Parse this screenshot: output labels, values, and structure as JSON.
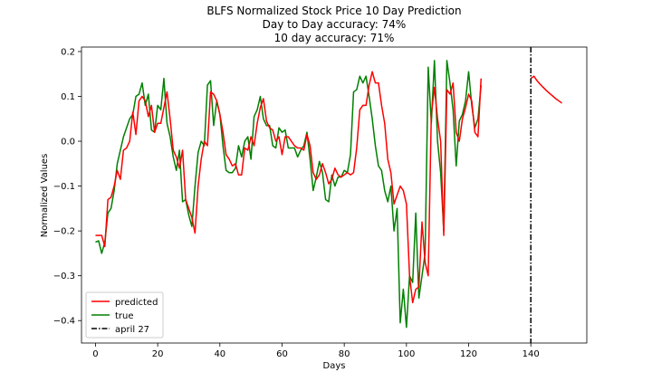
{
  "chart_data": {
    "type": "line",
    "title_lines": [
      "BLFS Normalized Stock Price 10 Day Prediction",
      "Day to Day accuracy: 74%",
      "10 day accuracy: 71%"
    ],
    "xlabel": "Days",
    "ylabel": "Normalized Values",
    "xlim": [
      -4.5,
      158
    ],
    "ylim": [
      -0.45,
      0.21
    ],
    "xticks": [
      0,
      20,
      40,
      60,
      80,
      100,
      120,
      140
    ],
    "yticks": [
      -0.4,
      -0.3,
      -0.2,
      -0.1,
      0.0,
      0.1,
      0.2
    ],
    "ytick_labels": [
      "−0.4",
      "−0.3",
      "−0.2",
      "−0.1",
      "0.0",
      "0.1",
      "0.2"
    ],
    "grid": false,
    "legend_position": "lower-left",
    "series": [
      {
        "name": "predicted",
        "color": "#ff0000",
        "x_start": 0,
        "values": [
          -0.21,
          -0.21,
          -0.21,
          -0.235,
          -0.13,
          -0.125,
          -0.1,
          -0.065,
          -0.085,
          -0.02,
          -0.015,
          0.0,
          0.065,
          0.015,
          0.09,
          0.1,
          0.09,
          0.055,
          0.08,
          0.02,
          0.04,
          0.04,
          0.075,
          0.11,
          0.05,
          -0.02,
          -0.035,
          -0.06,
          -0.02,
          -0.13,
          -0.15,
          -0.17,
          -0.205,
          -0.1,
          -0.04,
          0.0,
          -0.01,
          0.11,
          0.105,
          0.09,
          0.06,
          0.02,
          -0.03,
          -0.04,
          -0.055,
          -0.05,
          -0.075,
          -0.075,
          -0.015,
          -0.02,
          0.01,
          -0.01,
          0.04,
          0.075,
          0.095,
          0.045,
          0.03,
          0.025,
          0.0,
          0.01,
          -0.03,
          0.01,
          0.01,
          0.0,
          -0.01,
          -0.015,
          -0.015,
          -0.02,
          0.015,
          -0.01,
          -0.07,
          -0.085,
          -0.075,
          -0.05,
          -0.07,
          -0.095,
          -0.085,
          -0.06,
          -0.075,
          -0.08,
          -0.075,
          -0.07,
          -0.075,
          -0.07,
          -0.015,
          0.07,
          0.08,
          0.08,
          0.125,
          0.155,
          0.13,
          0.13,
          0.08,
          0.04,
          -0.04,
          -0.07,
          -0.14,
          -0.12,
          -0.1,
          -0.11,
          -0.14,
          -0.3,
          -0.36,
          -0.33,
          -0.325,
          -0.18,
          -0.27,
          -0.3,
          0.06,
          0.12,
          0.05,
          0.0,
          -0.21,
          0.115,
          0.105,
          0.13,
          0.02,
          0.0,
          0.05,
          0.075,
          0.105,
          0.09,
          0.02,
          0.01,
          0.14
        ],
        "forecast": {
          "x": [
            140,
            141,
            142,
            143,
            144,
            145,
            146,
            147,
            148,
            149,
            150
          ],
          "values": [
            0.14,
            0.145,
            0.135,
            0.127,
            0.12,
            0.113,
            0.107,
            0.101,
            0.095,
            0.09,
            0.085
          ]
        }
      },
      {
        "name": "true",
        "color": "#008000",
        "x_start": 0,
        "values": [
          -0.225,
          -0.222,
          -0.25,
          -0.225,
          -0.16,
          -0.15,
          -0.11,
          -0.05,
          -0.02,
          0.01,
          0.03,
          0.05,
          0.06,
          0.1,
          0.105,
          0.13,
          0.08,
          0.105,
          0.025,
          0.02,
          0.08,
          0.07,
          0.14,
          0.04,
          0.01,
          -0.035,
          -0.065,
          -0.02,
          -0.135,
          -0.13,
          -0.165,
          -0.19,
          -0.1,
          -0.025,
          0.0,
          -0.01,
          0.125,
          0.135,
          0.035,
          0.09,
          0.06,
          -0.01,
          -0.065,
          -0.07,
          -0.07,
          -0.06,
          -0.01,
          -0.035,
          0.0,
          0.01,
          -0.04,
          0.055,
          0.07,
          0.1,
          0.05,
          0.035,
          0.035,
          -0.01,
          -0.015,
          0.03,
          0.02,
          0.025,
          -0.015,
          -0.015,
          -0.015,
          -0.035,
          -0.02,
          -0.01,
          0.02,
          -0.04,
          -0.11,
          -0.08,
          -0.045,
          -0.07,
          -0.13,
          -0.135,
          -0.075,
          -0.1,
          -0.08,
          -0.08,
          -0.065,
          -0.07,
          -0.03,
          0.11,
          0.115,
          0.145,
          0.13,
          0.145,
          0.1,
          0.05,
          -0.01,
          -0.055,
          -0.065,
          -0.11,
          -0.135,
          -0.1,
          -0.2,
          -0.15,
          -0.405,
          -0.33,
          -0.415,
          -0.3,
          -0.315,
          -0.16,
          -0.35,
          -0.3,
          -0.25,
          0.165,
          0.04,
          0.18,
          0.0,
          -0.07,
          -0.2,
          0.18,
          0.13,
          0.07,
          -0.055,
          0.045,
          0.06,
          0.09,
          0.155,
          0.08,
          0.03,
          0.05,
          0.125
        ]
      },
      {
        "name": "april 27",
        "color": "#000000",
        "style": "dashdot",
        "x": 140
      }
    ]
  }
}
